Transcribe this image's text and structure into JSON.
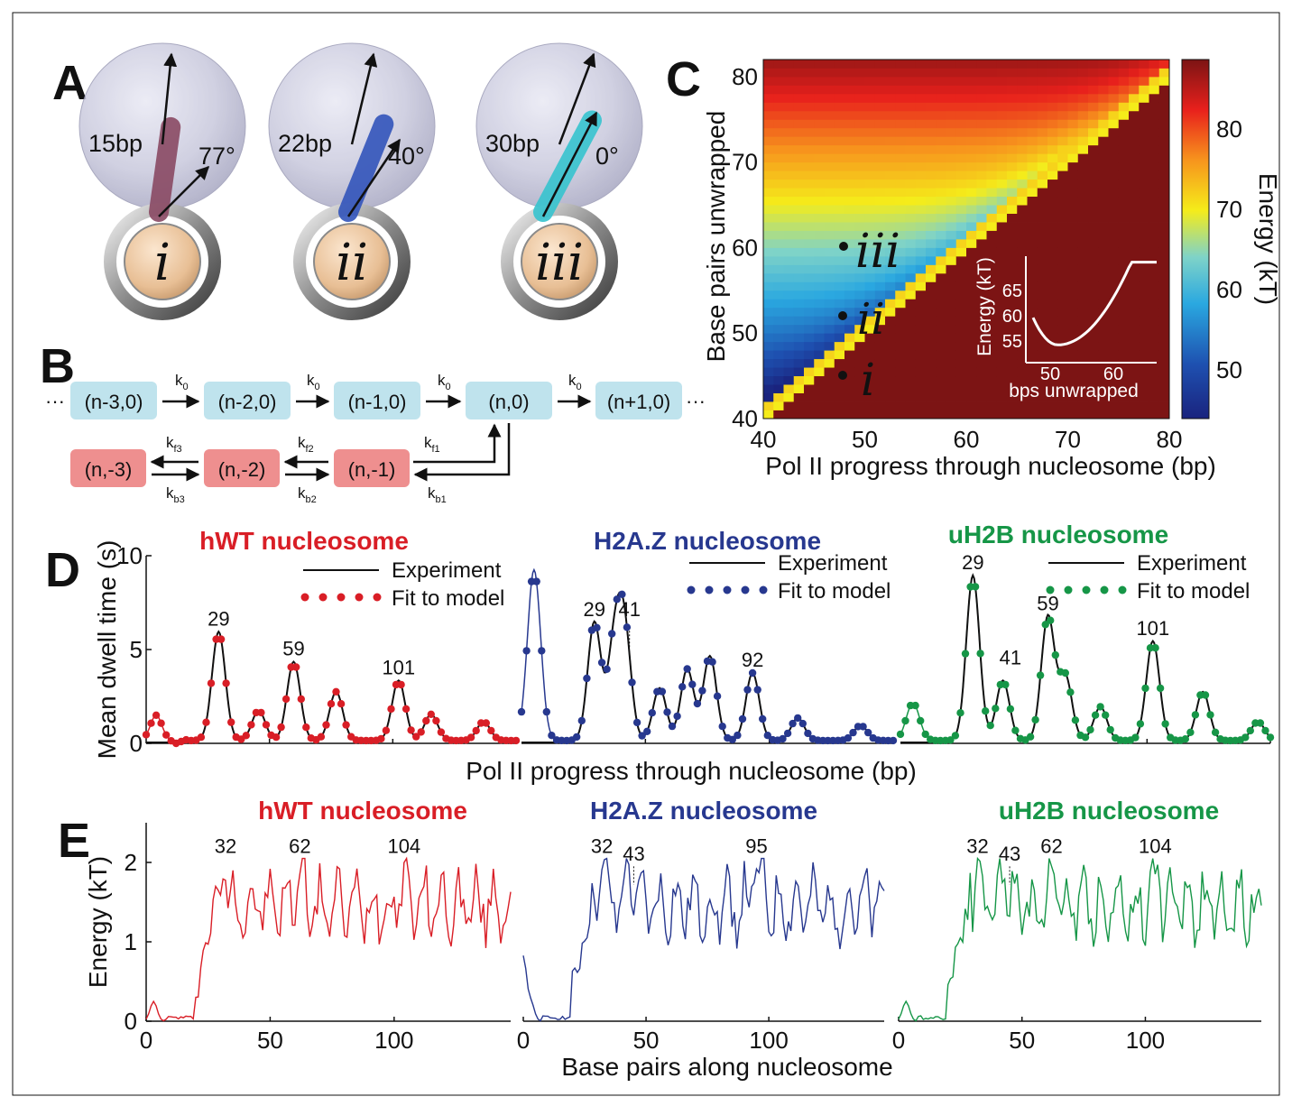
{
  "panels": {
    "A": "A",
    "B": "B",
    "C": "C",
    "D": "D",
    "E": "E"
  },
  "panel_a": {
    "items": [
      {
        "bp": "15bp",
        "angle": "77°",
        "roman": "i",
        "color": "#8a4a64"
      },
      {
        "bp": "22bp",
        "angle": "40°",
        "roman": "ii",
        "color": "#3355bb"
      },
      {
        "bp": "30bp",
        "angle": "0°",
        "roman": "iii",
        "color": "#37c4cf"
      }
    ]
  },
  "panel_b": {
    "top_states": [
      "(n-3,0)",
      "(n-2,0)",
      "(n-1,0)",
      "(n,0)",
      "(n+1,0)"
    ],
    "bottom_states": [
      "(n,-3)",
      "(n,-2)",
      "(n,-1)"
    ],
    "leading_ellipsis": "···",
    "trailing_ellipsis": "···",
    "k0": "k",
    "k0_sub": "0",
    "kf": [
      {
        "k": "k",
        "sub": "f3"
      },
      {
        "k": "k",
        "sub": "f2"
      },
      {
        "k": "k",
        "sub": "f1"
      }
    ],
    "kb": [
      {
        "k": "k",
        "sub": "b3"
      },
      {
        "k": "k",
        "sub": "b2"
      },
      {
        "k": "k",
        "sub": "b1"
      }
    ],
    "colors": {
      "top": "#bfe3ed",
      "bottom": "#ee8f8f"
    }
  },
  "panel_c": {
    "xlabel": "Pol II progress through nucleosome (bp)",
    "ylabel": "Base pairs unwrapped",
    "xticks": [
      "40",
      "50",
      "60",
      "70",
      "80"
    ],
    "yticks": [
      "40",
      "50",
      "60",
      "70",
      "80"
    ],
    "colorbar_label": "Energy (kT)",
    "colorbar_ticks": [
      "50",
      "60",
      "70",
      "80"
    ],
    "markers": [
      {
        "label": "iii",
        "x": 47,
        "y": 59
      },
      {
        "label": "ii",
        "x": 47,
        "y": 51.5
      },
      {
        "label": "i",
        "x": 47,
        "y": 45
      }
    ],
    "inset": {
      "xlabel": "bps unwrapped",
      "ylabel": "Energy (kT)",
      "xticks": [
        "50",
        "60"
      ],
      "yticks": [
        "55",
        "60",
        "65"
      ]
    }
  },
  "panel_d": {
    "ylabel": "Mean dwell time (s)",
    "xlabel": "Pol II progress through nucleosome (bp)",
    "yticks": [
      "0",
      "5",
      "10"
    ],
    "legend_experiment": "Experiment",
    "legend_fit": "Fit to model",
    "plots": [
      {
        "title": "hWT nucleosome",
        "color": "#d91e26",
        "peaks": [
          "29",
          "59",
          "101"
        ]
      },
      {
        "title": "H2A.Z nucleosome",
        "color": "#27388f",
        "peaks": [
          "29",
          "41",
          "92"
        ]
      },
      {
        "title": "uH2B nucleosome",
        "color": "#169647",
        "peaks": [
          "29",
          "41",
          "59",
          "101"
        ]
      }
    ]
  },
  "panel_e": {
    "ylabel": "Energy (kT)",
    "xlabel": "Base pairs along nucleosome",
    "yticks": [
      "0",
      "1",
      "2"
    ],
    "xticks": [
      "0",
      "50",
      "100"
    ],
    "plots": [
      {
        "title": "hWT nucleosome",
        "color": "#d91e26",
        "peaks": [
          "32",
          "62",
          "104"
        ]
      },
      {
        "title": "H2A.Z nucleosome",
        "color": "#27388f",
        "peaks": [
          "32",
          "43",
          "95"
        ]
      },
      {
        "title": "uH2B nucleosome",
        "color": "#169647",
        "peaks": [
          "32",
          "43",
          "62",
          "104"
        ]
      }
    ]
  }
}
